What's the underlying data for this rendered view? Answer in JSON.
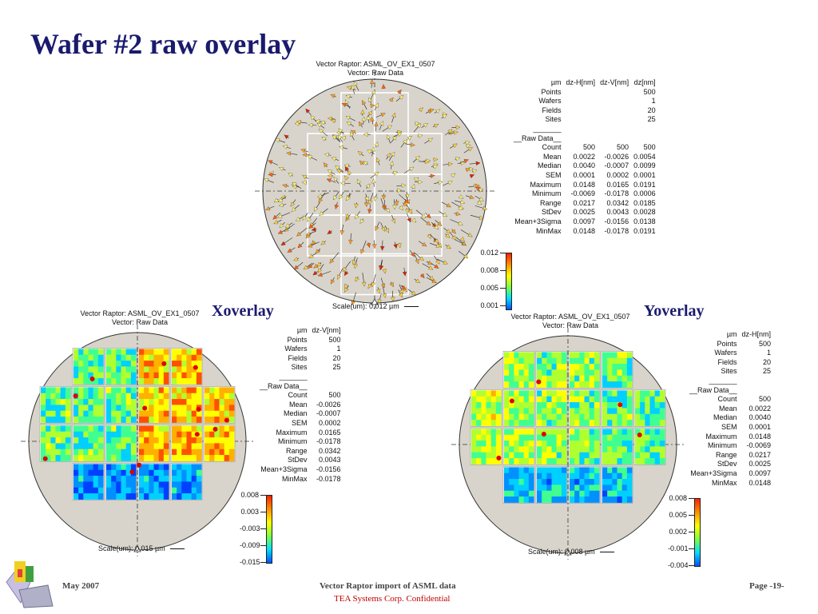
{
  "slide": {
    "title": "Wafer #2 raw overlay",
    "footer": {
      "date": "May 2007",
      "center": "Vector Raptor import of ASML data",
      "confidential": "TEA Systems Corp. Confidential",
      "page": "Page -19-"
    },
    "logo": "tea-systems-logo-icon"
  },
  "panels": {
    "vector": {
      "title_line1": "Vector Raptor: ASML_OV_EX1_0507",
      "title_line2": "Vector: Raw Data",
      "stats": {
        "header": [
          "µm",
          "dz-H[nm]",
          "dz-V[nm]",
          "dz[nm]"
        ],
        "meta": [
          {
            "label": "Points",
            "values": [
              "",
              "",
              "500"
            ]
          },
          {
            "label": "Wafers",
            "values": [
              "",
              "",
              "1"
            ]
          },
          {
            "label": "Fields",
            "values": [
              "",
              "",
              "20"
            ]
          },
          {
            "label": "Sites",
            "values": [
              "",
              "",
              "25"
            ]
          }
        ],
        "section_rule": "_______",
        "section": "__Raw Data__",
        "rows": [
          {
            "label": "Count",
            "values": [
              "500",
              "500",
              "500"
            ]
          },
          {
            "label": "Mean",
            "values": [
              "0.0022",
              "-0.0026",
              "0.0054"
            ]
          },
          {
            "label": "Median",
            "values": [
              "0.0040",
              "-0.0007",
              "0.0099"
            ]
          },
          {
            "label": "SEM",
            "values": [
              "0.0001",
              "0.0002",
              "0.0001"
            ]
          },
          {
            "label": "Maximum",
            "values": [
              "0.0148",
              "0.0165",
              "0.0191"
            ]
          },
          {
            "label": "Minimum",
            "values": [
              "-0.0069",
              "-0.0178",
              "0.0006"
            ]
          },
          {
            "label": "Range",
            "values": [
              "0.0217",
              "0.0342",
              "0.0185"
            ]
          },
          {
            "label": "StDev",
            "values": [
              "0.0025",
              "0.0043",
              "0.0028"
            ]
          },
          {
            "label": "Mean+3Sigma",
            "values": [
              "0.0097",
              "-0.0156",
              "0.0138"
            ]
          },
          {
            "label": "MinMax",
            "values": [
              "0.0148",
              "-0.0178",
              "0.0191"
            ]
          }
        ]
      },
      "colorbar": [
        "0.012",
        "0.008",
        "0.005",
        "0.001"
      ],
      "scale_label": "Scale(um): 0.012 µm"
    },
    "xoverlay": {
      "label": "Xoverlay",
      "title_line1": "Vector Raptor: ASML_OV_EX1_0507",
      "title_line2": "Vector: Raw Data",
      "stats": {
        "header": [
          "µm",
          "dz-V[nm]"
        ],
        "meta": [
          {
            "label": "Points",
            "values": [
              "500"
            ]
          },
          {
            "label": "Wafers",
            "values": [
              "1"
            ]
          },
          {
            "label": "Fields",
            "values": [
              "20"
            ]
          },
          {
            "label": "Sites",
            "values": [
              "25"
            ]
          }
        ],
        "section_rule": "_______",
        "section": "__Raw Data__",
        "rows": [
          {
            "label": "Count",
            "values": [
              "500"
            ]
          },
          {
            "label": "Mean",
            "values": [
              "-0.0026"
            ]
          },
          {
            "label": "Median",
            "values": [
              "-0.0007"
            ]
          },
          {
            "label": "SEM",
            "values": [
              "0.0002"
            ]
          },
          {
            "label": "Maximum",
            "values": [
              "0.0165"
            ]
          },
          {
            "label": "Minimum",
            "values": [
              "-0.0178"
            ]
          },
          {
            "label": "Range",
            "values": [
              "0.0342"
            ]
          },
          {
            "label": "StDev",
            "values": [
              "0.0043"
            ]
          },
          {
            "label": "Mean+3Sigma",
            "values": [
              "-0.0156"
            ]
          },
          {
            "label": "MinMax",
            "values": [
              "-0.0178"
            ]
          }
        ]
      },
      "colorbar": [
        "0.008",
        "0.003",
        "-0.003",
        "-0.009",
        "-0.015"
      ],
      "scale_label": "Scale(um): 0.015 µm"
    },
    "yoverlay": {
      "label": "Yoverlay",
      "title_line1": "Vector Raptor: ASML_OV_EX1_0507",
      "title_line2": "Vector: Raw Data",
      "stats": {
        "header": [
          "µm",
          "dz-H[nm]"
        ],
        "meta": [
          {
            "label": "Points",
            "values": [
              "500"
            ]
          },
          {
            "label": "Wafers",
            "values": [
              "1"
            ]
          },
          {
            "label": "Fields",
            "values": [
              "20"
            ]
          },
          {
            "label": "Sites",
            "values": [
              "25"
            ]
          }
        ],
        "section_rule": "_______",
        "section": "__Raw Data__",
        "rows": [
          {
            "label": "Count",
            "values": [
              "500"
            ]
          },
          {
            "label": "Mean",
            "values": [
              "0.0022"
            ]
          },
          {
            "label": "Median",
            "values": [
              "0.0040"
            ]
          },
          {
            "label": "SEM",
            "values": [
              "0.0001"
            ]
          },
          {
            "label": "Maximum",
            "values": [
              "0.0148"
            ]
          },
          {
            "label": "Minimum",
            "values": [
              "-0.0069"
            ]
          },
          {
            "label": "Range",
            "values": [
              "0.0217"
            ]
          },
          {
            "label": "StDev",
            "values": [
              "0.0025"
            ]
          },
          {
            "label": "Mean+3Sigma",
            "values": [
              "0.0097"
            ]
          },
          {
            "label": "MinMax",
            "values": [
              "0.0148"
            ]
          }
        ]
      },
      "colorbar": [
        "0.008",
        "0.005",
        "0.002",
        "-0.001",
        "-0.004"
      ],
      "scale_label": "Scale(um): 0.008 µm"
    }
  },
  "colors": {
    "title": "#1a1a6e",
    "wafer_fill": "#d8d4cc",
    "confidential": "#c00000"
  }
}
